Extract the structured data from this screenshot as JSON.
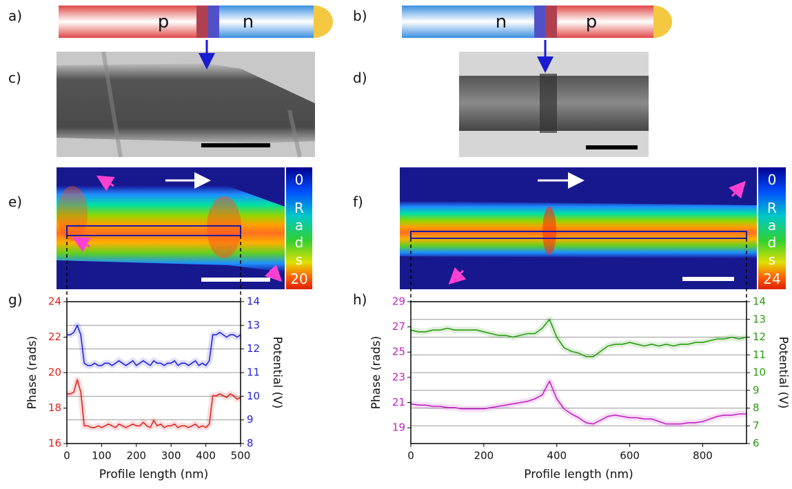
{
  "figure": {
    "panels": [
      "a)",
      "b)",
      "c)",
      "d)",
      "e)",
      "f)",
      "g)",
      "h)"
    ],
    "schematic_a": [
      "p",
      "n"
    ],
    "schematic_b": [
      "n",
      "p"
    ],
    "colorbar_e": {
      "min": 0,
      "label": "Rads",
      "max": 20
    },
    "colorbar_f": {
      "min": 0,
      "label": "Rads",
      "max": 24
    }
  },
  "chart_data": [
    {
      "type": "line",
      "xlabel": "Profile length (nm)",
      "ylabel": "Phase (rads)",
      "y2label": "Potential (V)",
      "xlim": [
        0,
        500
      ],
      "xticks": [
        0,
        100,
        200,
        300,
        400,
        500
      ],
      "ylim": [
        16,
        24
      ],
      "yticks": [
        16,
        18,
        20,
        22,
        24
      ],
      "y_color": "#e0201c",
      "y2lim": [
        8,
        14
      ],
      "y2ticks": [
        8,
        9,
        10,
        11,
        12,
        13,
        14
      ],
      "y2_color": "#1f1fdc",
      "grid": "y2",
      "x": [
        0,
        10,
        20,
        30,
        40,
        50,
        60,
        70,
        80,
        90,
        100,
        110,
        120,
        130,
        140,
        150,
        160,
        170,
        180,
        190,
        200,
        210,
        220,
        230,
        240,
        250,
        260,
        270,
        280,
        290,
        300,
        310,
        320,
        330,
        340,
        350,
        360,
        370,
        380,
        390,
        400,
        410,
        420,
        430,
        440,
        450,
        460,
        470,
        480,
        490,
        500
      ],
      "series": [
        {
          "color": "#e0201c",
          "values": [
            18.8,
            18.8,
            18.9,
            19.6,
            18.9,
            17.0,
            17.0,
            16.9,
            16.9,
            17.0,
            16.9,
            17.0,
            17.1,
            17.0,
            16.9,
            17.1,
            17.0,
            16.9,
            17.0,
            17.1,
            17.0,
            17.0,
            17.2,
            17.0,
            16.9,
            17.3,
            17.0,
            17.1,
            16.9,
            17.0,
            17.0,
            17.1,
            16.9,
            17.0,
            17.0,
            16.9,
            17.0,
            17.1,
            16.9,
            17.0,
            16.9,
            17.1,
            18.7,
            18.7,
            18.8,
            18.7,
            18.6,
            18.8,
            18.7,
            18.5,
            18.6
          ]
        },
        {
          "color": "#1f1fdc",
          "axis": "y2",
          "values": [
            12.6,
            12.6,
            12.7,
            13.0,
            12.6,
            11.4,
            11.3,
            11.3,
            11.4,
            11.3,
            11.3,
            11.4,
            11.4,
            11.3,
            11.4,
            11.5,
            11.4,
            11.3,
            11.4,
            11.5,
            11.3,
            11.4,
            11.5,
            11.4,
            11.3,
            11.5,
            11.4,
            11.4,
            11.3,
            11.4,
            11.4,
            11.5,
            11.3,
            11.4,
            11.4,
            11.3,
            11.4,
            11.5,
            11.3,
            11.4,
            11.3,
            11.5,
            12.6,
            12.6,
            12.7,
            12.6,
            12.5,
            12.6,
            12.6,
            12.5,
            12.6
          ]
        }
      ]
    },
    {
      "type": "line",
      "xlabel": "Profile length (nm)",
      "ylabel": "Phase (rads)",
      "y2label": "Potential (V)",
      "xlim": [
        0,
        920
      ],
      "xticks": [
        0,
        200,
        400,
        600,
        800
      ],
      "ylim": [
        17.75,
        29
      ],
      "yticks": [
        19,
        21,
        23,
        25,
        27,
        29
      ],
      "y_color": "#c020c0",
      "y2lim": [
        6,
        14
      ],
      "y2ticks": [
        6,
        7,
        8,
        9,
        10,
        11,
        12,
        13,
        14
      ],
      "y2_color": "#2a9a10",
      "grid": "y2",
      "x": [
        0,
        20,
        40,
        60,
        80,
        100,
        120,
        140,
        160,
        180,
        200,
        220,
        240,
        260,
        280,
        300,
        320,
        340,
        360,
        380,
        400,
        420,
        440,
        460,
        480,
        500,
        520,
        540,
        560,
        580,
        600,
        620,
        640,
        660,
        680,
        700,
        720,
        740,
        760,
        780,
        800,
        820,
        840,
        860,
        880,
        900,
        920
      ],
      "series": [
        {
          "color": "#c020c0",
          "values": [
            20.9,
            20.8,
            20.8,
            20.7,
            20.7,
            20.6,
            20.6,
            20.5,
            20.5,
            20.5,
            20.5,
            20.6,
            20.7,
            20.8,
            20.9,
            21.0,
            21.1,
            21.3,
            21.6,
            22.7,
            21.3,
            20.5,
            20.1,
            19.8,
            19.4,
            19.3,
            19.6,
            19.9,
            20.0,
            19.9,
            19.8,
            19.8,
            19.7,
            19.7,
            19.5,
            19.3,
            19.3,
            19.3,
            19.4,
            19.4,
            19.5,
            19.7,
            19.9,
            20.0,
            20.0,
            20.1,
            20.1
          ]
        },
        {
          "color": "#2a9a10",
          "axis": "y2",
          "values": [
            12.4,
            12.3,
            12.3,
            12.4,
            12.4,
            12.5,
            12.4,
            12.4,
            12.4,
            12.4,
            12.3,
            12.2,
            12.1,
            12.1,
            12.0,
            12.1,
            12.2,
            12.2,
            12.5,
            13.0,
            12.0,
            11.4,
            11.2,
            11.1,
            10.9,
            10.9,
            11.2,
            11.5,
            11.6,
            11.6,
            11.7,
            11.6,
            11.5,
            11.6,
            11.5,
            11.6,
            11.5,
            11.6,
            11.6,
            11.7,
            11.7,
            11.8,
            11.9,
            11.9,
            12.0,
            11.9,
            12.0
          ]
        }
      ]
    }
  ]
}
